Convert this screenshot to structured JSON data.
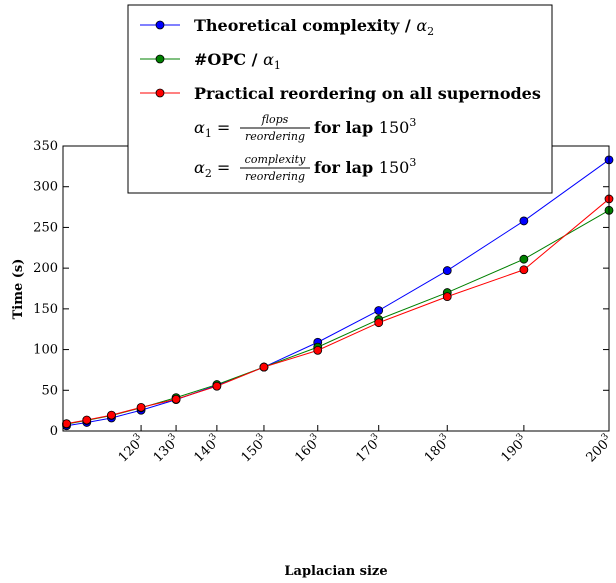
{
  "chart_data": {
    "type": "line",
    "xlabel": "Laplacian size",
    "ylabel": "Time (s)",
    "ylim": [
      0,
      350
    ],
    "yticks": [
      "0",
      "50",
      "100",
      "150",
      "200",
      "250",
      "300",
      "350"
    ],
    "xticks": [
      {
        "label": "120",
        "exp": "3",
        "n": 120
      },
      {
        "label": "130",
        "exp": "3",
        "n": 130
      },
      {
        "label": "140",
        "exp": "3",
        "n": 140
      },
      {
        "label": "150",
        "exp": "3",
        "n": 150
      },
      {
        "label": "160",
        "exp": "3",
        "n": 160
      },
      {
        "label": "170",
        "exp": "3",
        "n": 170
      },
      {
        "label": "180",
        "exp": "3",
        "n": 180
      },
      {
        "label": "190",
        "exp": "3",
        "n": 190
      },
      {
        "label": "200",
        "exp": "3",
        "n": 200
      }
    ],
    "x_n": [
      10,
      20,
      30,
      40,
      50,
      60,
      70,
      80,
      90,
      100,
      110,
      120,
      130,
      140,
      150,
      160,
      170,
      180,
      190,
      200
    ],
    "series": [
      {
        "name": "Theoretical complexity / α2",
        "color": "#0000ff",
        "values": [
          0.0,
          0.1,
          0.2,
          0.4,
          0.8,
          1.5,
          2.5,
          4.0,
          6.5,
          10.5,
          16.0,
          25.5,
          38.5,
          56.0,
          78.5,
          109.0,
          148.0,
          197.0,
          258.0,
          333.0
        ]
      },
      {
        "name": "#OPC / α1",
        "color": "#008000",
        "values": [
          0.0,
          0.2,
          0.4,
          0.8,
          1.5,
          2.5,
          3.8,
          5.5,
          8.5,
          13.0,
          19.0,
          28.5,
          41.0,
          57.0,
          78.5,
          103.0,
          137.0,
          170.0,
          211.0,
          271.0
        ]
      },
      {
        "name": "Practical reordering on all supernodes",
        "color": "#ff0000",
        "values": [
          0.0,
          0.3,
          0.5,
          1.0,
          1.8,
          3.0,
          4.5,
          6.5,
          9.0,
          13.5,
          19.5,
          29.0,
          39.0,
          55.0,
          78.5,
          99.0,
          133.0,
          165.0,
          198.0,
          285.0
        ]
      }
    ],
    "legend": {
      "position": "top-center",
      "items": [
        {
          "main": "Theoretical complexity / ",
          "sym": "α",
          "sub": "2",
          "color": "#0000ff"
        },
        {
          "main": "#OPC / ",
          "sym": "α",
          "sub": "1",
          "color": "#008000"
        },
        {
          "main": "Practical reordering on all supernodes",
          "sym": "",
          "sub": "",
          "color": "#ff0000"
        }
      ],
      "annotations": [
        {
          "sym": "α",
          "sub": "1",
          "eq": " =",
          "num": "flops",
          "den": "reordering",
          "text": " for lap ",
          "val": "150",
          "exp": "3"
        },
        {
          "sym": "α",
          "sub": "2",
          "eq": " =",
          "num": "complexity",
          "den": "reordering",
          "text": " for lap ",
          "val": "150",
          "exp": "3"
        }
      ]
    }
  }
}
